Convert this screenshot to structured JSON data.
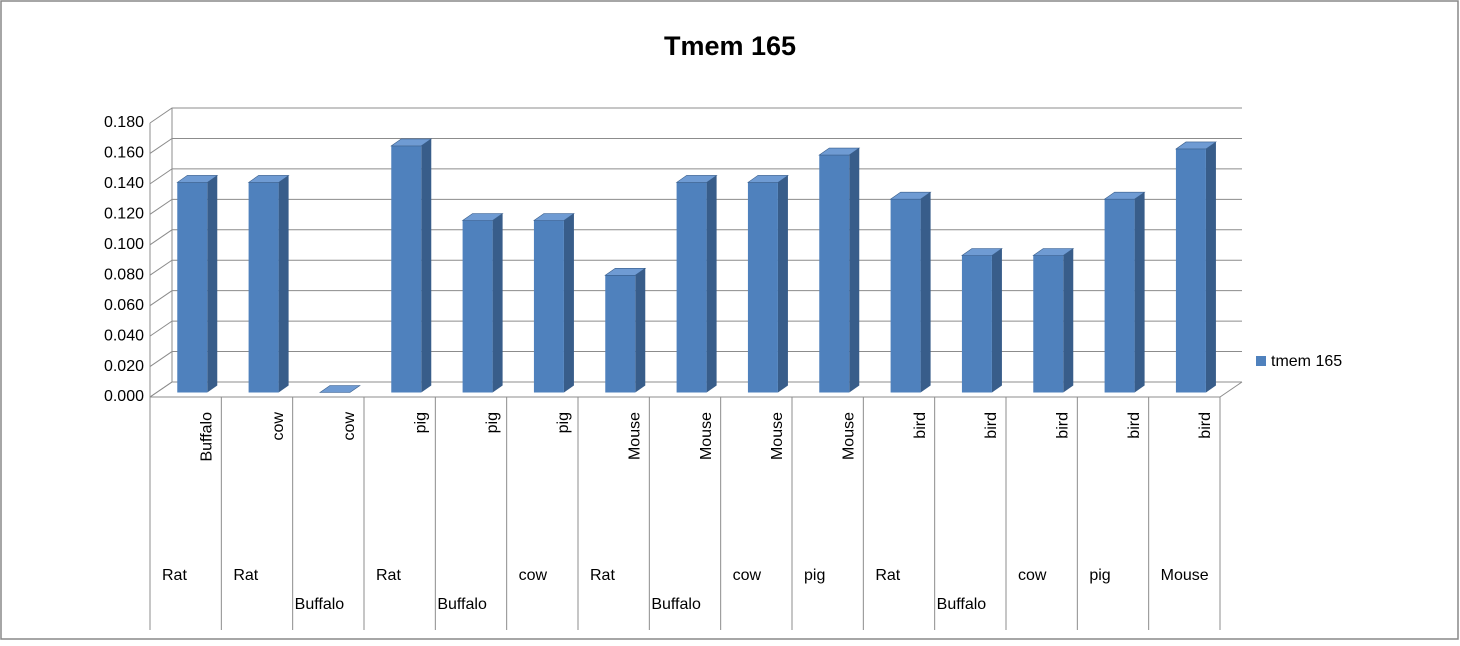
{
  "chart_data": {
    "type": "bar3d",
    "title": "Tmem 165",
    "categories": [
      [
        "Buffalo",
        "Rat"
      ],
      [
        "cow",
        "Rat"
      ],
      [
        "cow",
        "Buffalo"
      ],
      [
        "pig",
        "Rat"
      ],
      [
        "pig",
        "Buffalo"
      ],
      [
        "pig",
        "cow"
      ],
      [
        "Mouse",
        "Rat"
      ],
      [
        "Mouse",
        "Buffalo"
      ],
      [
        "Mouse",
        "cow"
      ],
      [
        "Mouse",
        "pig"
      ],
      [
        "bird",
        "Rat"
      ],
      [
        "bird",
        "Buffalo"
      ],
      [
        "bird",
        "cow"
      ],
      [
        "bird",
        "pig"
      ],
      [
        "bird",
        "Mouse"
      ]
    ],
    "series": [
      {
        "name": "tmem 165",
        "color": "#4f81bd",
        "values": [
          0.138,
          0.138,
          0,
          0.162,
          0.113,
          0.113,
          0.077,
          0.138,
          0.138,
          0.156,
          0.127,
          0.09,
          0.09,
          0.127,
          0.16
        ]
      }
    ],
    "ylim": [
      0,
      0.18
    ],
    "yticks": [
      {
        "value": 0,
        "label": "0.000"
      },
      {
        "value": 0.02,
        "label": "0.020"
      },
      {
        "value": 0.04,
        "label": "0.040"
      },
      {
        "value": 0.06,
        "label": "0.060"
      },
      {
        "value": 0.08,
        "label": "0.080"
      },
      {
        "value": 0.1,
        "label": "0.100"
      },
      {
        "value": 0.12,
        "label": "0.120"
      },
      {
        "value": 0.14,
        "label": "0.140"
      },
      {
        "value": 0.16,
        "label": "0.160"
      },
      {
        "value": 0.18,
        "label": "0.180"
      }
    ],
    "grid": true,
    "legend": "right"
  }
}
